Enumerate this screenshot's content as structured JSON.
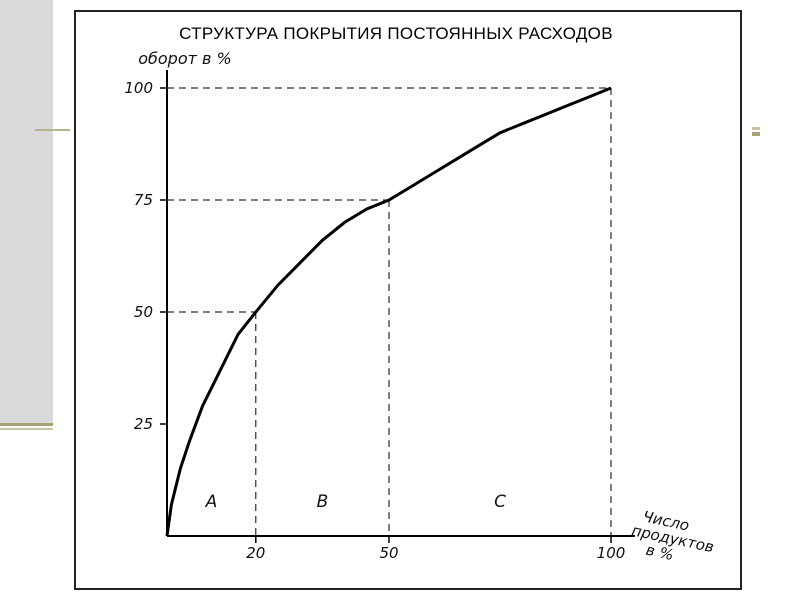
{
  "chart_data": {
    "type": "line",
    "title": "СТРУКТУРА ПОКРЫТИЯ ПОСТОЯННЫХ РАСХОДОВ",
    "ylabel": "оборот в %",
    "xlabel_lines": [
      "Число",
      "продуктов",
      "в %"
    ],
    "x_ticks": [
      "20",
      "50",
      "100"
    ],
    "y_ticks": [
      "25",
      "50",
      "75",
      "100"
    ],
    "xlim": [
      0,
      100
    ],
    "ylim": [
      0,
      100
    ],
    "series": [
      {
        "x": [
          0,
          1,
          3,
          5,
          8,
          10,
          13,
          16,
          20,
          25,
          30,
          35,
          40,
          45,
          50,
          55,
          60,
          65,
          70,
          75,
          80,
          85,
          90,
          95,
          100
        ],
        "y": [
          0,
          7,
          15,
          21,
          29,
          33,
          39,
          45,
          50,
          56,
          61,
          66,
          70,
          73,
          75,
          78,
          81,
          84,
          87,
          90,
          92,
          94,
          96,
          98,
          100
        ]
      }
    ],
    "guides": [
      {
        "x": 20,
        "y": 50
      },
      {
        "x": 50,
        "y": 75
      },
      {
        "x": 100,
        "y": 100
      }
    ],
    "regions": [
      {
        "label": "A",
        "x": 10
      },
      {
        "label": "B",
        "x": 35
      },
      {
        "label": "C",
        "x": 75
      }
    ],
    "grid": false,
    "legend": "none"
  }
}
